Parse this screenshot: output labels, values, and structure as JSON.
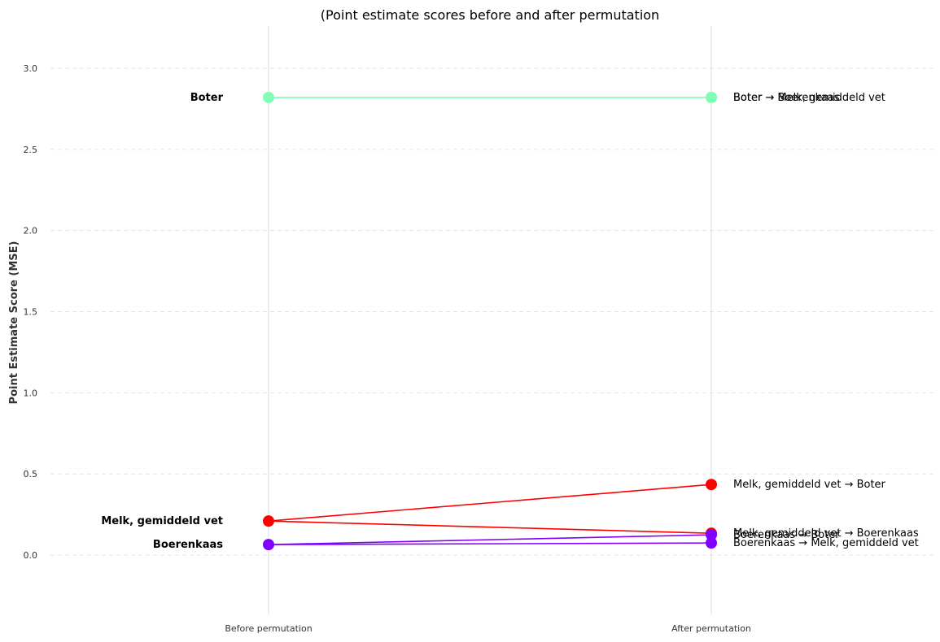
{
  "chart_data": {
    "type": "line",
    "title": "(Point estimate scores before and after permutation",
    "ylabel": "Point Estimate Score (MSE)",
    "categories": [
      "Before permutation",
      "After permutation"
    ],
    "ylim": [
      -0.37,
      3.26
    ],
    "yticks": [
      "0.0",
      "0.5",
      "1.0",
      "1.5",
      "2.0",
      "2.5",
      "3.0"
    ],
    "grid": true,
    "start_points": [
      {
        "label": "Boter",
        "value": 2.82,
        "color": "#80ffb4"
      },
      {
        "label": "Melk, gemiddeld vet",
        "value": 0.21,
        "color": "#ff0000"
      },
      {
        "label": "Boerenkaas",
        "value": 0.065,
        "color": "#8000ff"
      }
    ],
    "series": [
      {
        "name": "Boter → Boerenkaas",
        "from": "Boter",
        "values": [
          2.82,
          2.82
        ],
        "color": "#80ffb4"
      },
      {
        "name": "Boter → Melk, gemiddeld vet",
        "from": "Boter",
        "values": [
          2.82,
          2.82
        ],
        "color": "#80ffb4"
      },
      {
        "name": "Melk, gemiddeld vet → Boter",
        "from": "Melk, gemiddeld vet",
        "values": [
          0.21,
          0.435
        ],
        "color": "#ff0000"
      },
      {
        "name": "Melk, gemiddeld vet → Boerenkaas",
        "from": "Melk, gemiddeld vet",
        "values": [
          0.21,
          0.135
        ],
        "color": "#ff0000"
      },
      {
        "name": "Boerenkaas → Boter",
        "from": "Boerenkaas",
        "values": [
          0.065,
          0.125
        ],
        "color": "#8000ff"
      },
      {
        "name": "Boerenkaas → Melk, gemiddeld vet",
        "from": "Boerenkaas",
        "values": [
          0.065,
          0.075
        ],
        "color": "#8000ff"
      }
    ]
  }
}
